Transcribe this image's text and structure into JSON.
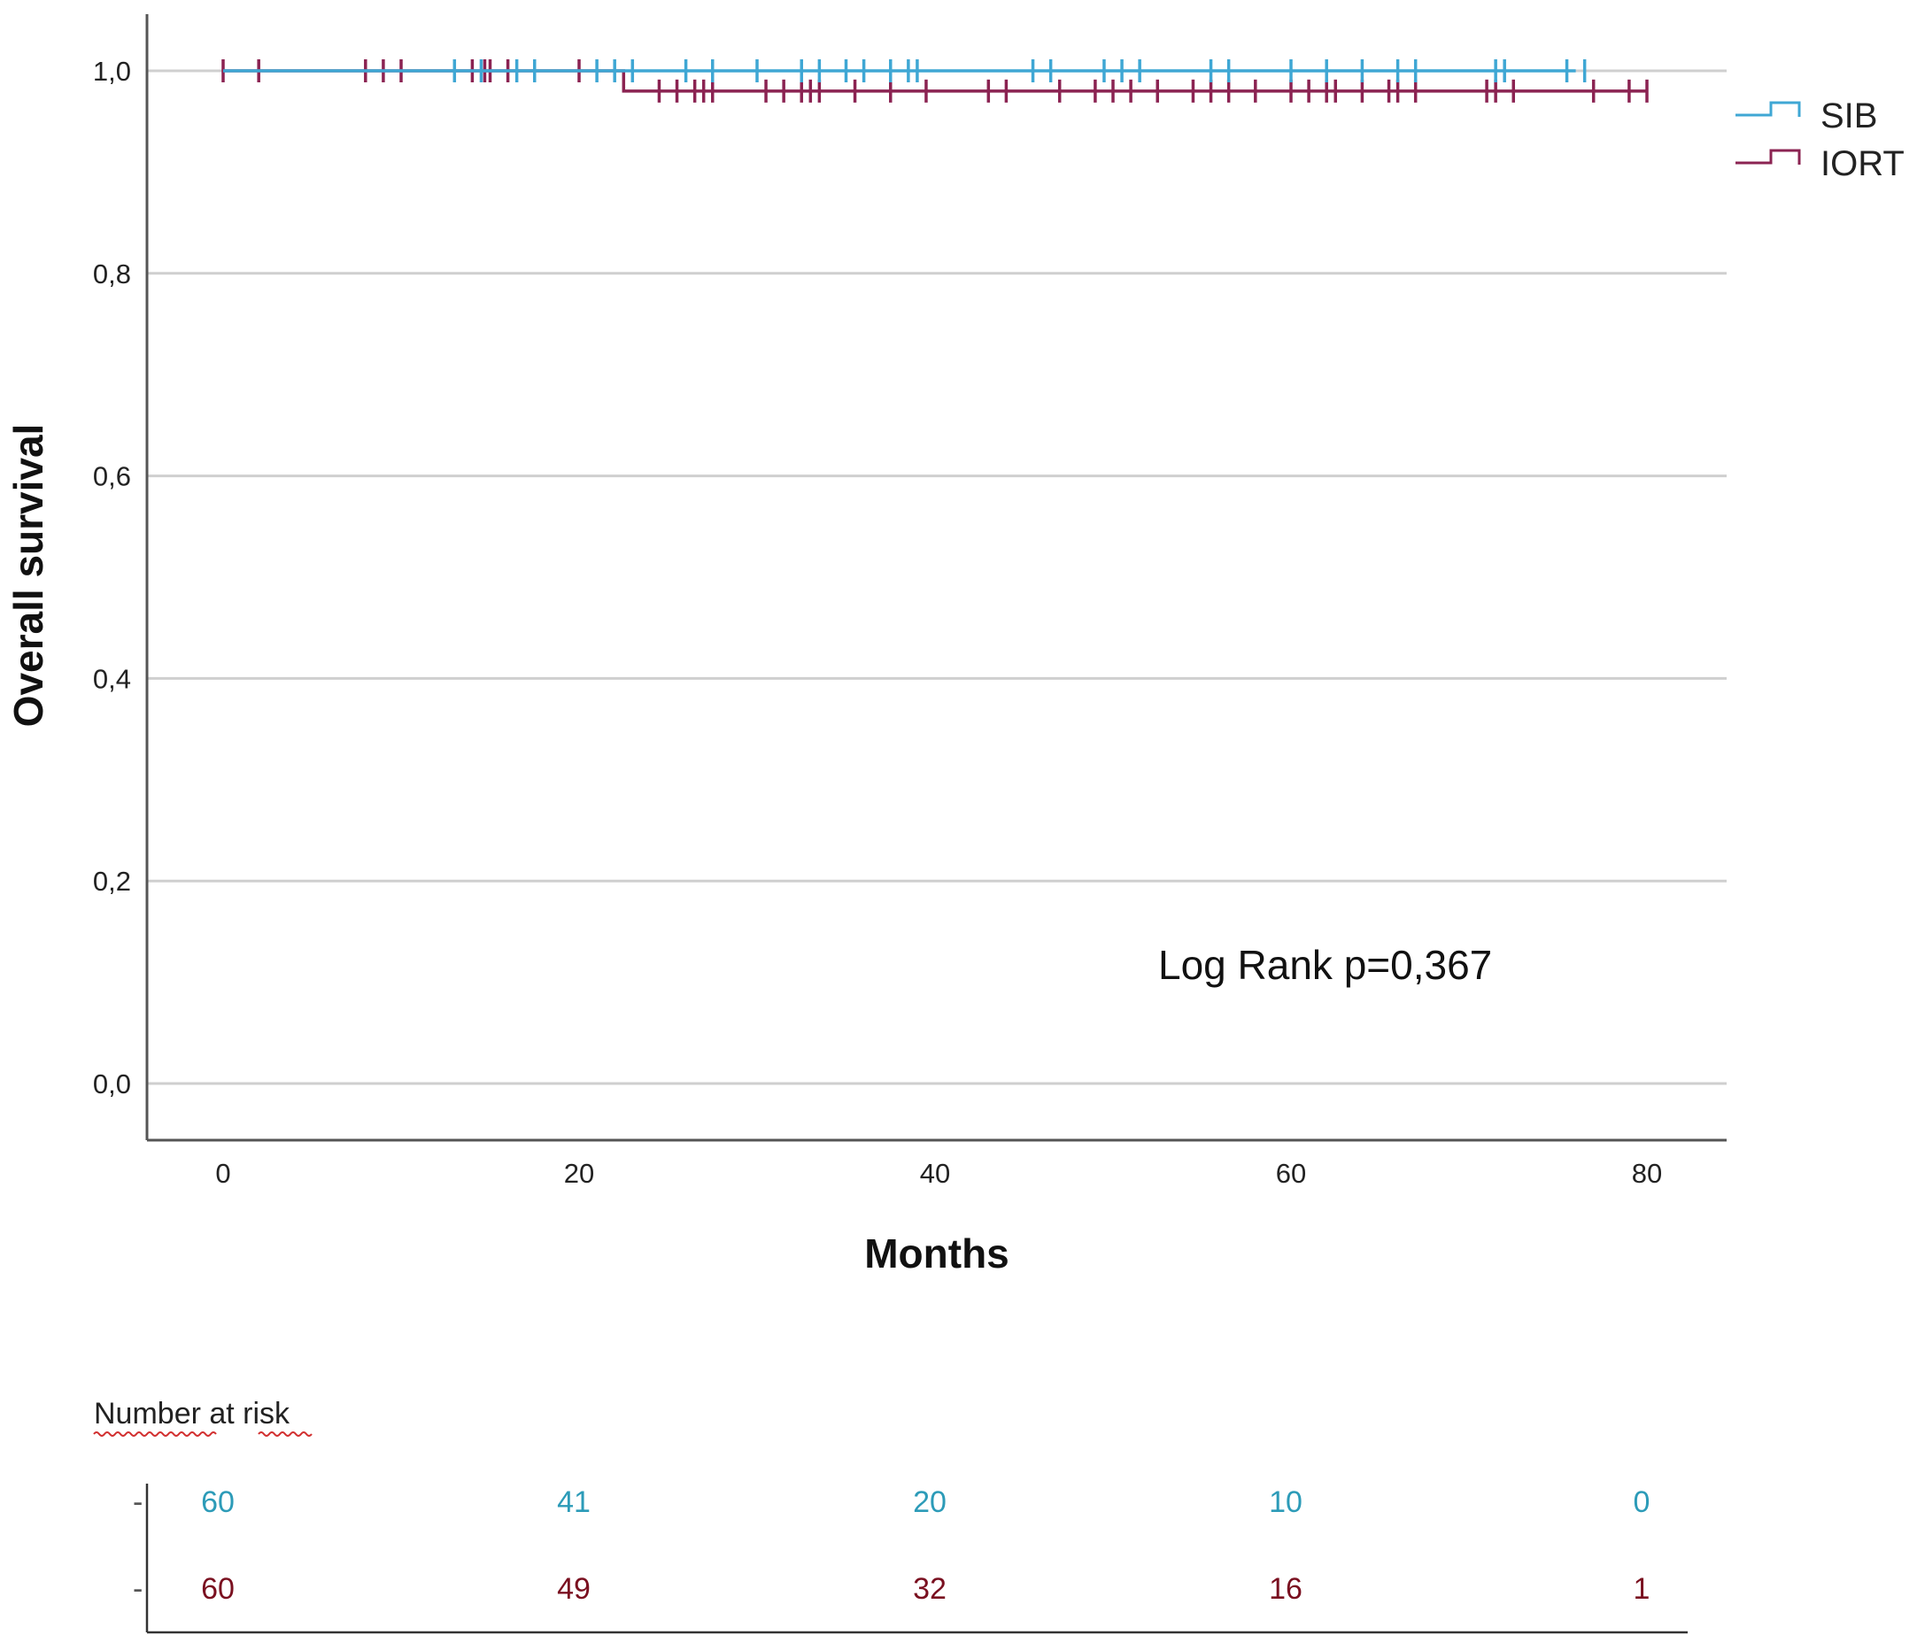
{
  "chart_data": {
    "type": "line",
    "subtype": "kaplan-meier",
    "title": "",
    "xlabel": "Months",
    "ylabel": "Overall survival",
    "xlim": [
      0,
      80
    ],
    "ylim": [
      0,
      1
    ],
    "x_ticks": [
      "0",
      "20",
      "40",
      "60",
      "80"
    ],
    "y_ticks": [
      "0,0",
      "0,2",
      "0,4",
      "0,6",
      "0,8",
      "1,0"
    ],
    "grid": "horizontal",
    "legend_position": "top-right",
    "annotation": "Log Rank p=0,367",
    "colors": {
      "SIB": "#3fa7d4",
      "IORT": "#8b2352",
      "axis": "#555555",
      "grid": "#cfcfcf"
    },
    "series": [
      {
        "name": "SIB",
        "color": "#3fa7d4",
        "steps": [
          [
            0,
            1.0
          ],
          [
            76,
            1.0
          ]
        ],
        "censored": [
          13,
          14.5,
          16.5,
          17.5,
          21,
          22,
          23,
          26,
          27.5,
          30,
          32.5,
          33.5,
          35,
          36,
          37.5,
          38.5,
          39,
          45.5,
          46.5,
          49.5,
          50.5,
          51.5,
          55.5,
          56.5,
          60,
          62,
          64,
          66,
          67,
          71.5,
          72,
          75.5,
          76.5
        ]
      },
      {
        "name": "IORT",
        "color": "#8b2352",
        "steps": [
          [
            0,
            1.0
          ],
          [
            22.5,
            1.0
          ],
          [
            22.5,
            0.98
          ],
          [
            80,
            0.98
          ]
        ],
        "censored": [
          0,
          2,
          8,
          9,
          10,
          14,
          14.7,
          15,
          16,
          17.5,
          20,
          24.5,
          25.5,
          26.5,
          27,
          27.5,
          30.5,
          31.5,
          32.5,
          33,
          33.5,
          35.5,
          37.5,
          39.5,
          43,
          44,
          47,
          49,
          50,
          51,
          52.5,
          54.5,
          55.5,
          56.5,
          58,
          60,
          61,
          62,
          62.5,
          64,
          65.5,
          66,
          67,
          71,
          71.5,
          72.5,
          77,
          79,
          80
        ]
      }
    ],
    "risk_table": {
      "title": "Number at risk",
      "time_points": [
        0,
        20,
        40,
        60,
        80
      ],
      "rows": [
        {
          "name": "SIB",
          "color": "#2c9bb8",
          "values": [
            "60",
            "41",
            "20",
            "10",
            "0"
          ]
        },
        {
          "name": "IORT",
          "color": "#7a1020",
          "values": [
            "60",
            "49",
            "32",
            "16",
            "1"
          ]
        }
      ]
    }
  }
}
